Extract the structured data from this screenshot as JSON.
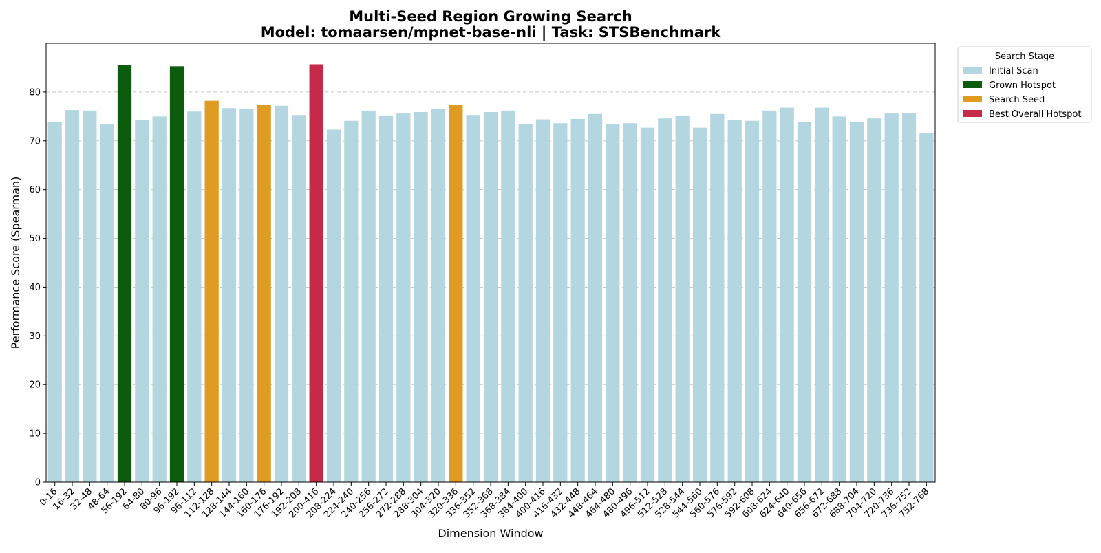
{
  "chart_data": {
    "type": "bar",
    "title": "Multi-Seed Region Growing Search",
    "subtitle": "Model: tomaarsen/mpnet-base-nli | Task: STSBenchmark",
    "xlabel": "Dimension Window",
    "ylabel": "Performance Score (Spearman)",
    "ylim": [
      0,
      90
    ],
    "yticks": [
      0,
      10,
      20,
      30,
      40,
      50,
      60,
      70,
      80
    ],
    "grid": "y-dashed",
    "legend": {
      "title": "Search Stage",
      "placement": "outside-top-right",
      "entries": [
        {
          "key": "initial",
          "label": "Initial Scan"
        },
        {
          "key": "grown",
          "label": "Grown Hotspot"
        },
        {
          "key": "seed",
          "label": "Search Seed"
        },
        {
          "key": "best",
          "label": "Best Overall Hotspot"
        }
      ]
    },
    "colors": {
      "initial": "#b4d6e0",
      "grown": "#0d5c0d",
      "seed": "#e09b22",
      "best": "#c62a4a"
    },
    "categories": [
      "0-16",
      "16-32",
      "32-48",
      "48-64",
      "56-192",
      "64-80",
      "80-96",
      "96-192",
      "96-112",
      "112-128",
      "128-144",
      "144-160",
      "160-176",
      "176-192",
      "192-208",
      "200-416",
      "208-224",
      "224-240",
      "240-256",
      "256-272",
      "272-288",
      "288-304",
      "304-320",
      "320-336",
      "336-352",
      "352-368",
      "368-384",
      "384-400",
      "400-416",
      "416-432",
      "432-448",
      "448-464",
      "464-480",
      "480-496",
      "496-512",
      "512-528",
      "528-544",
      "544-560",
      "560-576",
      "576-592",
      "592-608",
      "608-624",
      "624-640",
      "640-656",
      "656-672",
      "672-688",
      "688-704",
      "704-720",
      "720-736",
      "736-752",
      "752-768"
    ],
    "values": [
      73.8,
      76.3,
      76.2,
      73.4,
      85.5,
      74.3,
      75.0,
      85.3,
      76.0,
      78.2,
      76.7,
      76.5,
      77.4,
      77.2,
      75.3,
      85.7,
      72.3,
      74.1,
      76.2,
      75.2,
      75.6,
      75.9,
      76.5,
      77.4,
      75.3,
      75.9,
      76.2,
      73.5,
      74.4,
      73.6,
      74.5,
      75.5,
      73.4,
      73.6,
      72.7,
      74.6,
      75.2,
      72.7,
      75.5,
      74.2,
      74.1,
      76.2,
      76.8,
      73.9,
      76.8,
      75.0,
      73.9,
      74.6,
      75.6,
      75.7,
      71.6
    ],
    "stages": [
      "initial",
      "initial",
      "initial",
      "initial",
      "grown",
      "initial",
      "initial",
      "grown",
      "initial",
      "seed",
      "initial",
      "initial",
      "seed",
      "initial",
      "initial",
      "best",
      "initial",
      "initial",
      "initial",
      "initial",
      "initial",
      "initial",
      "initial",
      "seed",
      "initial",
      "initial",
      "initial",
      "initial",
      "initial",
      "initial",
      "initial",
      "initial",
      "initial",
      "initial",
      "initial",
      "initial",
      "initial",
      "initial",
      "initial",
      "initial",
      "initial",
      "initial",
      "initial",
      "initial",
      "initial",
      "initial",
      "initial",
      "initial",
      "initial",
      "initial",
      "initial"
    ]
  }
}
